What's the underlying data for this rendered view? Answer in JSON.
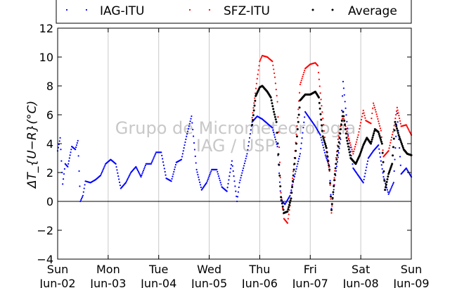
{
  "chart_data": {
    "type": "scatter",
    "title": "",
    "ylabel": "ΔT_{U−R}(°C)",
    "ylim": [
      -4,
      12
    ],
    "yticks": [
      -4,
      -2,
      0,
      2,
      4,
      6,
      8,
      10,
      12
    ],
    "xlim": [
      0,
      7
    ],
    "x_unit": "days since Sun Jun-02",
    "xtick_days": [
      "Sun",
      "Mon",
      "Tue",
      "Wed",
      "Thu",
      "Fri",
      "Sat",
      "Sun"
    ],
    "xtick_dates": [
      "Jun-02",
      "Jun-03",
      "Jun-04",
      "Jun-05",
      "Jun-06",
      "Jun-07",
      "Jun-08",
      "Jun-09"
    ],
    "grid": "vertical",
    "zero_line": true,
    "legend_position": "top",
    "watermark": [
      "Grupo de Micrometeorologia",
      "IAG / USP"
    ],
    "series": [
      {
        "name": "IAG-ITU",
        "color": "#0000ff",
        "points": [
          [
            0,
            3.5
          ],
          [
            0.05,
            4.4
          ],
          [
            0.1,
            1.2
          ],
          [
            0.15,
            2.6
          ],
          [
            0.2,
            2.4
          ],
          [
            0.28,
            3.8
          ],
          [
            0.35,
            3.6
          ],
          [
            0.4,
            4.2
          ],
          [
            0.45,
            0
          ],
          [
            0.5,
            0.4
          ],
          [
            0.55,
            1.4
          ],
          [
            0.65,
            1.3
          ],
          [
            0.75,
            1.5
          ],
          [
            0.85,
            1.8
          ],
          [
            0.95,
            2.6
          ],
          [
            1.05,
            2.9
          ],
          [
            1.15,
            2.6
          ],
          [
            1.25,
            0.9
          ],
          [
            1.35,
            1.3
          ],
          [
            1.45,
            2.0
          ],
          [
            1.55,
            2.4
          ],
          [
            1.65,
            1.7
          ],
          [
            1.75,
            2.6
          ],
          [
            1.85,
            2.6
          ],
          [
            1.95,
            3.4
          ],
          [
            2.05,
            3.4
          ],
          [
            2.15,
            1.6
          ],
          [
            2.25,
            1.4
          ],
          [
            2.35,
            2.7
          ],
          [
            2.45,
            2.9
          ],
          [
            2.55,
            4.5
          ],
          [
            2.65,
            5.9
          ],
          [
            2.75,
            2.2
          ],
          [
            2.85,
            0.8
          ],
          [
            2.95,
            1.3
          ],
          [
            3.05,
            2.2
          ],
          [
            3.15,
            2.2
          ],
          [
            3.25,
            1.0
          ],
          [
            3.35,
            0.7
          ],
          [
            3.45,
            2.8
          ],
          [
            3.55,
            0.0
          ],
          [
            3.6,
            1.3
          ],
          [
            3.75,
            3.3
          ],
          [
            3.85,
            5.5
          ],
          [
            3.95,
            5.9
          ],
          [
            4.05,
            5.7
          ],
          [
            4.15,
            5.4
          ],
          [
            4.25,
            5.1
          ],
          [
            4.35,
            3.8
          ],
          [
            4.42,
            0.1
          ],
          [
            4.5,
            -0.2
          ],
          [
            4.6,
            0.4
          ],
          [
            4.7,
            1.9
          ],
          [
            4.8,
            3.3
          ],
          [
            4.9,
            6.2
          ],
          [
            5.0,
            5.7
          ],
          [
            5.1,
            5.2
          ],
          [
            5.2,
            4.6
          ],
          [
            5.3,
            3.2
          ],
          [
            5.38,
            2.4
          ],
          [
            5.42,
            -0.5
          ],
          [
            5.5,
            1.8
          ],
          [
            5.6,
            4.3
          ],
          [
            5.65,
            8.3
          ],
          [
            5.75,
            4.6
          ],
          [
            5.85,
            2.3
          ],
          [
            5.95,
            1.8
          ],
          [
            6.05,
            1.3
          ],
          [
            6.15,
            3.0
          ],
          [
            6.25,
            3.5
          ],
          [
            6.35,
            3.9
          ],
          [
            6.45,
            1.7
          ],
          [
            6.55,
            0.5
          ],
          [
            6.65,
            1.3
          ],
          [
            6.72,
            6.1
          ],
          [
            6.8,
            1.9
          ],
          [
            6.9,
            2.3
          ],
          [
            7.0,
            1.7
          ]
        ]
      },
      {
        "name": "SFZ-ITU",
        "color": "#ff0000",
        "points": [
          [
            3.85,
            5.8
          ],
          [
            3.95,
            8.5
          ],
          [
            4.0,
            9.7
          ],
          [
            4.05,
            10.1
          ],
          [
            4.15,
            10.0
          ],
          [
            4.25,
            9.7
          ],
          [
            4.3,
            8.6
          ],
          [
            4.35,
            6.9
          ],
          [
            4.42,
            0.6
          ],
          [
            4.48,
            -1.2
          ],
          [
            4.55,
            -1.5
          ],
          [
            4.6,
            -0.3
          ],
          [
            4.7,
            3.5
          ],
          [
            4.8,
            8.1
          ],
          [
            4.9,
            9.2
          ],
          [
            5.0,
            9.5
          ],
          [
            5.1,
            9.6
          ],
          [
            5.15,
            9.4
          ],
          [
            5.2,
            7.5
          ],
          [
            5.3,
            4.0
          ],
          [
            5.38,
            2.1
          ],
          [
            5.42,
            -0.8
          ],
          [
            5.5,
            2.6
          ],
          [
            5.55,
            4.3
          ],
          [
            5.6,
            5.2
          ],
          [
            5.65,
            5.9
          ],
          [
            5.75,
            4.5
          ],
          [
            5.85,
            3.3
          ],
          [
            5.95,
            4.6
          ],
          [
            6.05,
            6.3
          ],
          [
            6.1,
            5.6
          ],
          [
            6.2,
            5.4
          ],
          [
            6.25,
            6.8
          ],
          [
            6.3,
            6.2
          ],
          [
            6.4,
            4.9
          ],
          [
            6.45,
            3.1
          ],
          [
            6.55,
            3.5
          ],
          [
            6.65,
            5.0
          ],
          [
            6.72,
            6.5
          ],
          [
            6.8,
            5.2
          ],
          [
            6.9,
            5.3
          ],
          [
            7.0,
            4.6
          ]
        ]
      },
      {
        "name": "Average",
        "color": "#000000",
        "points": [
          [
            3.85,
            5.3
          ],
          [
            3.92,
            7.3
          ],
          [
            4.0,
            7.9
          ],
          [
            4.05,
            8.0
          ],
          [
            4.15,
            7.6
          ],
          [
            4.22,
            7.2
          ],
          [
            4.28,
            6.2
          ],
          [
            4.33,
            5.5
          ],
          [
            4.42,
            0.3
          ],
          [
            4.48,
            -0.8
          ],
          [
            4.55,
            -0.7
          ],
          [
            4.62,
            0.2
          ],
          [
            4.7,
            3.0
          ],
          [
            4.8,
            7.0
          ],
          [
            4.9,
            7.4
          ],
          [
            5.0,
            7.4
          ],
          [
            5.1,
            7.6
          ],
          [
            5.17,
            7.2
          ],
          [
            5.25,
            4.5
          ],
          [
            5.32,
            3.7
          ],
          [
            5.38,
            2.2
          ],
          [
            5.42,
            -0.6
          ],
          [
            5.5,
            2.3
          ],
          [
            5.58,
            4.4
          ],
          [
            5.65,
            6.2
          ],
          [
            5.72,
            4.4
          ],
          [
            5.8,
            3.0
          ],
          [
            5.9,
            2.6
          ],
          [
            5.98,
            3.2
          ],
          [
            6.05,
            3.9
          ],
          [
            6.12,
            4.4
          ],
          [
            6.2,
            4.0
          ],
          [
            6.28,
            5.0
          ],
          [
            6.35,
            4.8
          ],
          [
            6.42,
            4.0
          ],
          [
            6.48,
            0.8
          ],
          [
            6.55,
            1.9
          ],
          [
            6.62,
            2.6
          ],
          [
            6.68,
            5.5
          ],
          [
            6.75,
            4.6
          ],
          [
            6.85,
            3.6
          ],
          [
            6.92,
            3.3
          ],
          [
            7.0,
            3.2
          ]
        ]
      }
    ]
  }
}
